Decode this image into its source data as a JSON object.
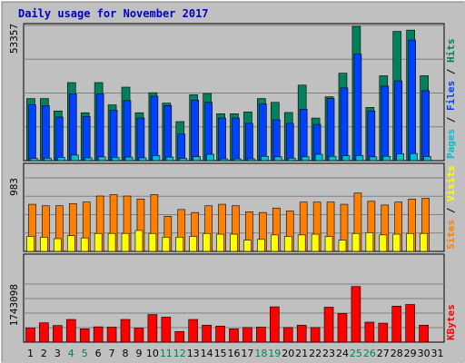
{
  "chart_data": {
    "type": "bar",
    "title": "Daily usage for November 2017",
    "days": [
      "1",
      "2",
      "3",
      "4",
      "5",
      "6",
      "7",
      "8",
      "9",
      "10",
      "11",
      "12",
      "13",
      "14",
      "15",
      "16",
      "17",
      "18",
      "19",
      "20",
      "21",
      "22",
      "23",
      "24",
      "25",
      "26",
      "27",
      "28",
      "29",
      "30",
      "31"
    ],
    "weekend_days": [
      "4",
      "5",
      "11",
      "12",
      "18",
      "19",
      "25",
      "26"
    ],
    "panels": [
      {
        "id": "hits",
        "y_max_label": "53357",
        "y_max": 53357,
        "axis_labels": [
          "Pages",
          "Files",
          "Hits"
        ],
        "series": [
          {
            "name": "Hits",
            "color": "#00805c",
            "values": [
              24500,
              24500,
              19600,
              30800,
              18900,
              30800,
              22000,
              29000,
              18900,
              26800,
              22700,
              15400,
              26000,
              26500,
              18500,
              18500,
              19200,
              24500,
              23000,
              19000,
              29800,
              16800,
              25200,
              34500,
              53000,
              21000,
              33500,
              51000,
              51500,
              33500,
              0
            ]
          },
          {
            "name": "Files",
            "color": "#0040ff",
            "values": [
              22000,
              21700,
              17200,
              26300,
              17400,
              26300,
              19900,
              23700,
              16800,
              25400,
              21700,
              10500,
              23900,
              23000,
              16800,
              16800,
              14700,
              22400,
              16100,
              14700,
              20300,
              14300,
              24500,
              28700,
              42000,
              19600,
              29400,
              31500,
              47600,
              27600,
              0
            ]
          },
          {
            "name": "Pages",
            "color": "#00c0d0",
            "values": [
              900,
              1000,
              1300,
              2200,
              1100,
              1500,
              1300,
              1400,
              1100,
              2000,
              1400,
              900,
              1600,
              2500,
              700,
              700,
              700,
              1700,
              1500,
              1000,
              1500,
              2500,
              1700,
              1900,
              2000,
              1500,
              1700,
              2700,
              2800,
              1600,
              0
            ]
          }
        ]
      },
      {
        "id": "visits",
        "y_max_label": "983",
        "y_max": 983,
        "axis_labels": [
          "Sites",
          "Visits"
        ],
        "series": [
          {
            "name": "Visits",
            "color": "#ff8000",
            "values": [
              630,
              610,
              610,
              640,
              660,
              740,
              760,
              740,
              700,
              760,
              470,
              560,
              520,
              610,
              630,
              610,
              530,
              520,
              580,
              540,
              660,
              660,
              660,
              630,
              780,
              670,
              620,
              660,
              700,
              710,
              0
            ]
          },
          {
            "name": "Sites",
            "color": "#ffff00",
            "values": [
              200,
              190,
              170,
              210,
              180,
              240,
              240,
              240,
              280,
              240,
              190,
              190,
              200,
              240,
              230,
              230,
              150,
              160,
              220,
              200,
              220,
              230,
              200,
              150,
              240,
              250,
              220,
              230,
              240,
              240,
              0
            ]
          }
        ]
      },
      {
        "id": "kbytes",
        "y_max_label": "1743098",
        "y_max": 1743098,
        "axis_labels": [
          "KBytes"
        ],
        "series": [
          {
            "name": "KBytes",
            "color": "#ff0000",
            "values": [
              420000,
              580000,
              500000,
              680000,
              400000,
              460000,
              450000,
              680000,
              420000,
              830000,
              750000,
              320000,
              680000,
              510000,
              480000,
              400000,
              440000,
              450000,
              1060000,
              440000,
              510000,
              440000,
              1050000,
              860000,
              1670000,
              600000,
              570000,
              1080000,
              1130000,
              510000,
              0
            ]
          }
        ]
      }
    ]
  }
}
